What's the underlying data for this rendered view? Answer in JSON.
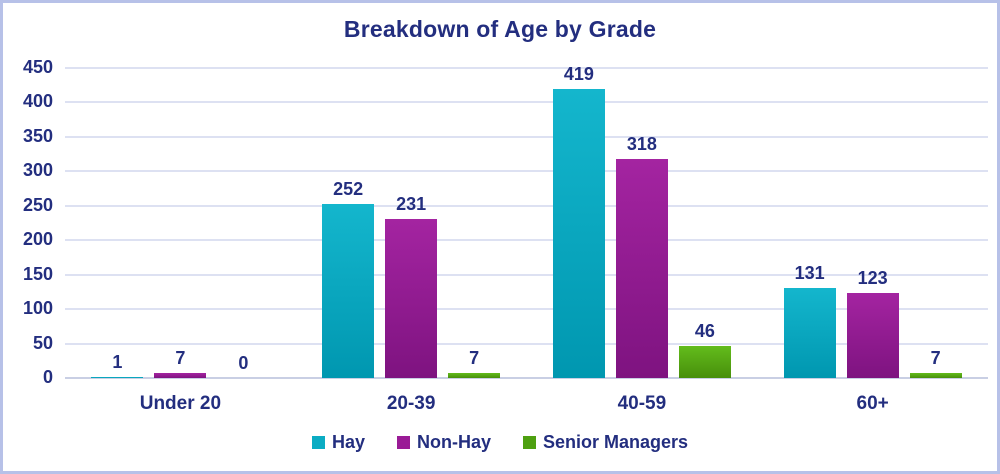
{
  "chart_data": {
    "type": "bar",
    "title": "Breakdown of Age by Grade",
    "categories": [
      "Under 20",
      "20-39",
      "40-59",
      "60+"
    ],
    "series": [
      {
        "name": "Hay",
        "values": [
          1,
          252,
          419,
          131
        ],
        "color": "#0bacc3",
        "gradient_top": "#14b6cd",
        "gradient_bottom": "#0097b0"
      },
      {
        "name": "Non-Hay",
        "values": [
          7,
          231,
          318,
          123
        ],
        "color": "#9a1b96",
        "gradient_top": "#a424a1",
        "gradient_bottom": "#7e1380"
      },
      {
        "name": "Senior Managers",
        "values": [
          0,
          7,
          46,
          7
        ],
        "color": "#4ea011",
        "gradient_top": "#63bc1c",
        "gradient_bottom": "#478f0b"
      }
    ],
    "ylim": [
      0,
      450
    ],
    "ytick_step": 50,
    "grid": true,
    "legend_position": "bottom",
    "value_labels": true
  },
  "colors": {
    "text": "#232e7f",
    "gridline": "#dde1f2",
    "baseline": "#c9cfe4",
    "frame_border": "#b7c1e8",
    "background": "#ffffff"
  }
}
